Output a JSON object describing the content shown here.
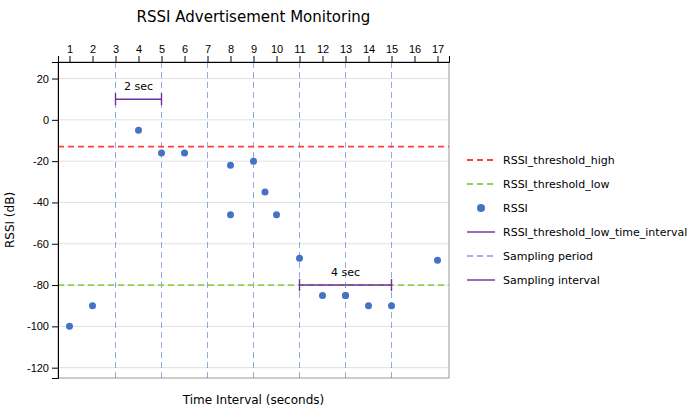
{
  "chart_data": {
    "type": "scatter",
    "title": "RSSI Advertisement Monitoring",
    "xlabel": "Time Interval (seconds)",
    "ylabel": "RSSI (dB)",
    "xlim": [
      0.5,
      17.5
    ],
    "xticks": [
      1,
      2,
      3,
      4,
      5,
      6,
      7,
      8,
      9,
      10,
      11,
      12,
      13,
      14,
      15,
      16,
      17
    ],
    "ylim": [
      -125,
      28
    ],
    "yticks": [
      -120,
      -100,
      -80,
      -60,
      -40,
      -20,
      0,
      20
    ],
    "grid": "y",
    "legend": "right",
    "series": [
      {
        "name": "RSSI_threshold_high",
        "type": "hline",
        "color": "#FF4040",
        "line_style": "dashed",
        "values": [
          -13
        ]
      },
      {
        "name": "RSSI_threshold_low",
        "type": "hline",
        "color": "#92D050",
        "line_style": "dashed",
        "values": [
          -80
        ]
      },
      {
        "name": "RSSI",
        "type": "scatter",
        "color": "#4472C4",
        "marker": "circle",
        "x": [
          1,
          2,
          4,
          5,
          6,
          8,
          8,
          9,
          9.5,
          10,
          11,
          12,
          13,
          13,
          14,
          15,
          17
        ],
        "values": [
          -100,
          -90,
          -5,
          -16,
          -16,
          -22,
          -46,
          -20,
          -35,
          -46,
          -67,
          -85,
          -85,
          -85,
          -90,
          -90,
          -68
        ]
      },
      {
        "name": "RSSI_threshold_low_time_interval",
        "type": "bracket",
        "color": "#7030A0",
        "line_style": "solid",
        "x": [
          11,
          15
        ],
        "values": [
          -80,
          -80
        ],
        "label": "4 sec"
      },
      {
        "name": "Sampling period",
        "type": "vline",
        "color": "#4472C4",
        "line_style": "dashed",
        "x": [
          3,
          5,
          7,
          9,
          11,
          13,
          15
        ]
      },
      {
        "name": "Sampling interval",
        "type": "bracket",
        "color": "#7030A0",
        "line_style": "solid",
        "x": [
          3,
          5
        ],
        "values": [
          10,
          10
        ],
        "label": "2 sec"
      }
    ]
  }
}
